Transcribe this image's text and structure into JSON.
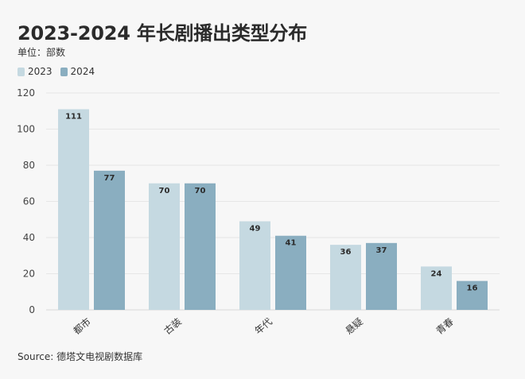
{
  "chart_data": {
    "type": "bar",
    "title": "2023-2024 年长剧播出类型分布",
    "subtitle": "单位：部数",
    "categories": [
      "都市",
      "古装",
      "年代",
      "悬疑",
      "青春"
    ],
    "series": [
      {
        "name": "2023",
        "values": [
          111,
          70,
          49,
          36,
          24
        ],
        "color": "#c5d9e1"
      },
      {
        "name": "2024",
        "values": [
          77,
          70,
          41,
          37,
          16
        ],
        "color": "#8aaec0"
      }
    ],
    "yticks": [
      0,
      20,
      40,
      60,
      80,
      100,
      120
    ],
    "ylim": [
      0,
      120
    ],
    "grid": true,
    "legend_position": "top-left",
    "source": "Source: 德塔文电视剧数据库"
  }
}
